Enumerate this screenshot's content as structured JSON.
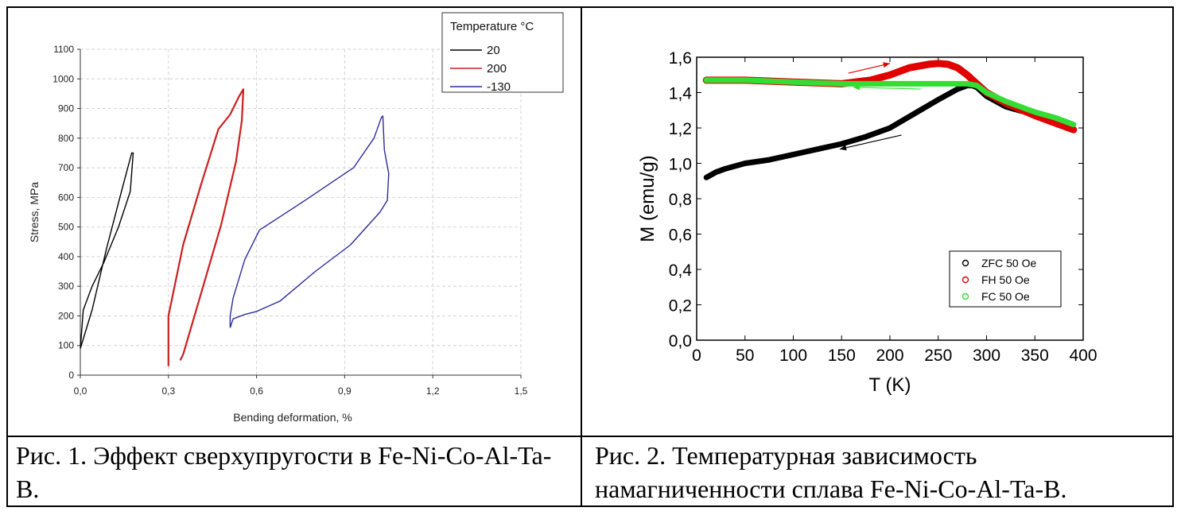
{
  "figures": [
    {
      "caption": "Рис. 1. Эффект сверхупругости в Fe-Ni-Co-Al-Ta-B.",
      "chart_data": {
        "type": "line",
        "xlabel": "Bending deformation, %",
        "ylabel": "Stress, MPa",
        "xlim": [
          0,
          1.5
        ],
        "ylim": [
          0,
          1100
        ],
        "xticks": [
          "0,0",
          "0,3",
          "0,6",
          "0,9",
          "1,2",
          "1,5"
        ],
        "yticks": [
          "0",
          "100",
          "200",
          "300",
          "400",
          "500",
          "600",
          "700",
          "800",
          "900",
          "1000",
          "1100"
        ],
        "grid": true,
        "legend_title": "Temperature °C",
        "legend_position": "top-right",
        "series": [
          {
            "name": "20",
            "color": "#000000",
            "x": [
              0.0,
              0.04,
              0.09,
              0.14,
              0.175,
              0.18,
              0.17,
              0.13,
              0.08,
              0.04,
              0.01,
              0.0
            ],
            "y": [
              90,
              220,
              430,
              620,
              750,
              750,
              620,
              500,
              380,
              300,
              220,
              90
            ]
          },
          {
            "name": "200",
            "color": "#cc1f1f",
            "x": [
              0.3,
              0.3,
              0.35,
              0.41,
              0.47,
              0.51,
              0.54,
              0.555,
              0.55,
              0.53,
              0.48,
              0.43,
              0.38,
              0.35,
              0.34
            ],
            "y": [
              30,
              200,
              440,
              640,
              830,
              880,
              940,
              965,
              860,
              720,
              510,
              340,
              170,
              70,
              50
            ]
          },
          {
            "name": "-130",
            "color": "#2b2b9c",
            "x": [
              0.51,
              0.51,
              0.52,
              0.56,
              0.61,
              0.75,
              0.93,
              1.0,
              1.025,
              1.03,
              1.035,
              1.05,
              1.045,
              1.02,
              0.92,
              0.8,
              0.68,
              0.6,
              0.56,
              0.52,
              0.51
            ],
            "y": [
              160,
              200,
              260,
              390,
              490,
              580,
              700,
              800,
              870,
              875,
              760,
              680,
              590,
              550,
              440,
              350,
              250,
              215,
              205,
              190,
              160
            ]
          }
        ]
      }
    },
    {
      "caption": "Рис. 2. Температурная зависимость намагниченности сплава Fe-Ni-Co-Al-Ta-B.",
      "chart_data": {
        "type": "scatter",
        "xlabel": "T (K)",
        "ylabel": "M (emu/g)",
        "xlim": [
          0,
          400
        ],
        "ylim": [
          0,
          1.6
        ],
        "xticks": [
          "0",
          "50",
          "100",
          "150",
          "200",
          "250",
          "300",
          "350",
          "400"
        ],
        "yticks": [
          "0,0",
          "0,2",
          "0,4",
          "0,6",
          "0,8",
          "1,0",
          "1,2",
          "1,4",
          "1,6"
        ],
        "grid": false,
        "legend_position": "bottom-right",
        "series": [
          {
            "name": "ZFC 50 Oe",
            "color": "#000000",
            "x": [
              10,
              20,
              30,
              50,
              75,
              100,
              125,
              150,
              175,
              200,
              225,
              250,
              270,
              280,
              285,
              290,
              300,
              320,
              340,
              360,
              380,
              390
            ],
            "y": [
              0.92,
              0.95,
              0.97,
              1.0,
              1.02,
              1.05,
              1.08,
              1.11,
              1.15,
              1.2,
              1.28,
              1.36,
              1.42,
              1.44,
              1.44,
              1.43,
              1.38,
              1.32,
              1.29,
              1.25,
              1.21,
              1.19
            ]
          },
          {
            "name": "FH 50 Oe",
            "color": "#e00000",
            "x": [
              10,
              50,
              100,
              150,
              180,
              200,
              220,
              240,
              250,
              260,
              270,
              280,
              290,
              300,
              320,
              350,
              370,
              390
            ],
            "y": [
              1.47,
              1.47,
              1.46,
              1.45,
              1.47,
              1.5,
              1.54,
              1.56,
              1.565,
              1.56,
              1.54,
              1.5,
              1.45,
              1.4,
              1.34,
              1.27,
              1.23,
              1.19
            ]
          },
          {
            "name": "FC 50 Oe",
            "color": "#33dd33",
            "x": [
              10,
              50,
              100,
              150,
              200,
              250,
              280,
              290,
              300,
              320,
              350,
              370,
              390
            ],
            "y": [
              1.47,
              1.47,
              1.46,
              1.45,
              1.45,
              1.45,
              1.45,
              1.44,
              1.4,
              1.35,
              1.29,
              1.26,
              1.22
            ]
          }
        ]
      }
    }
  ]
}
